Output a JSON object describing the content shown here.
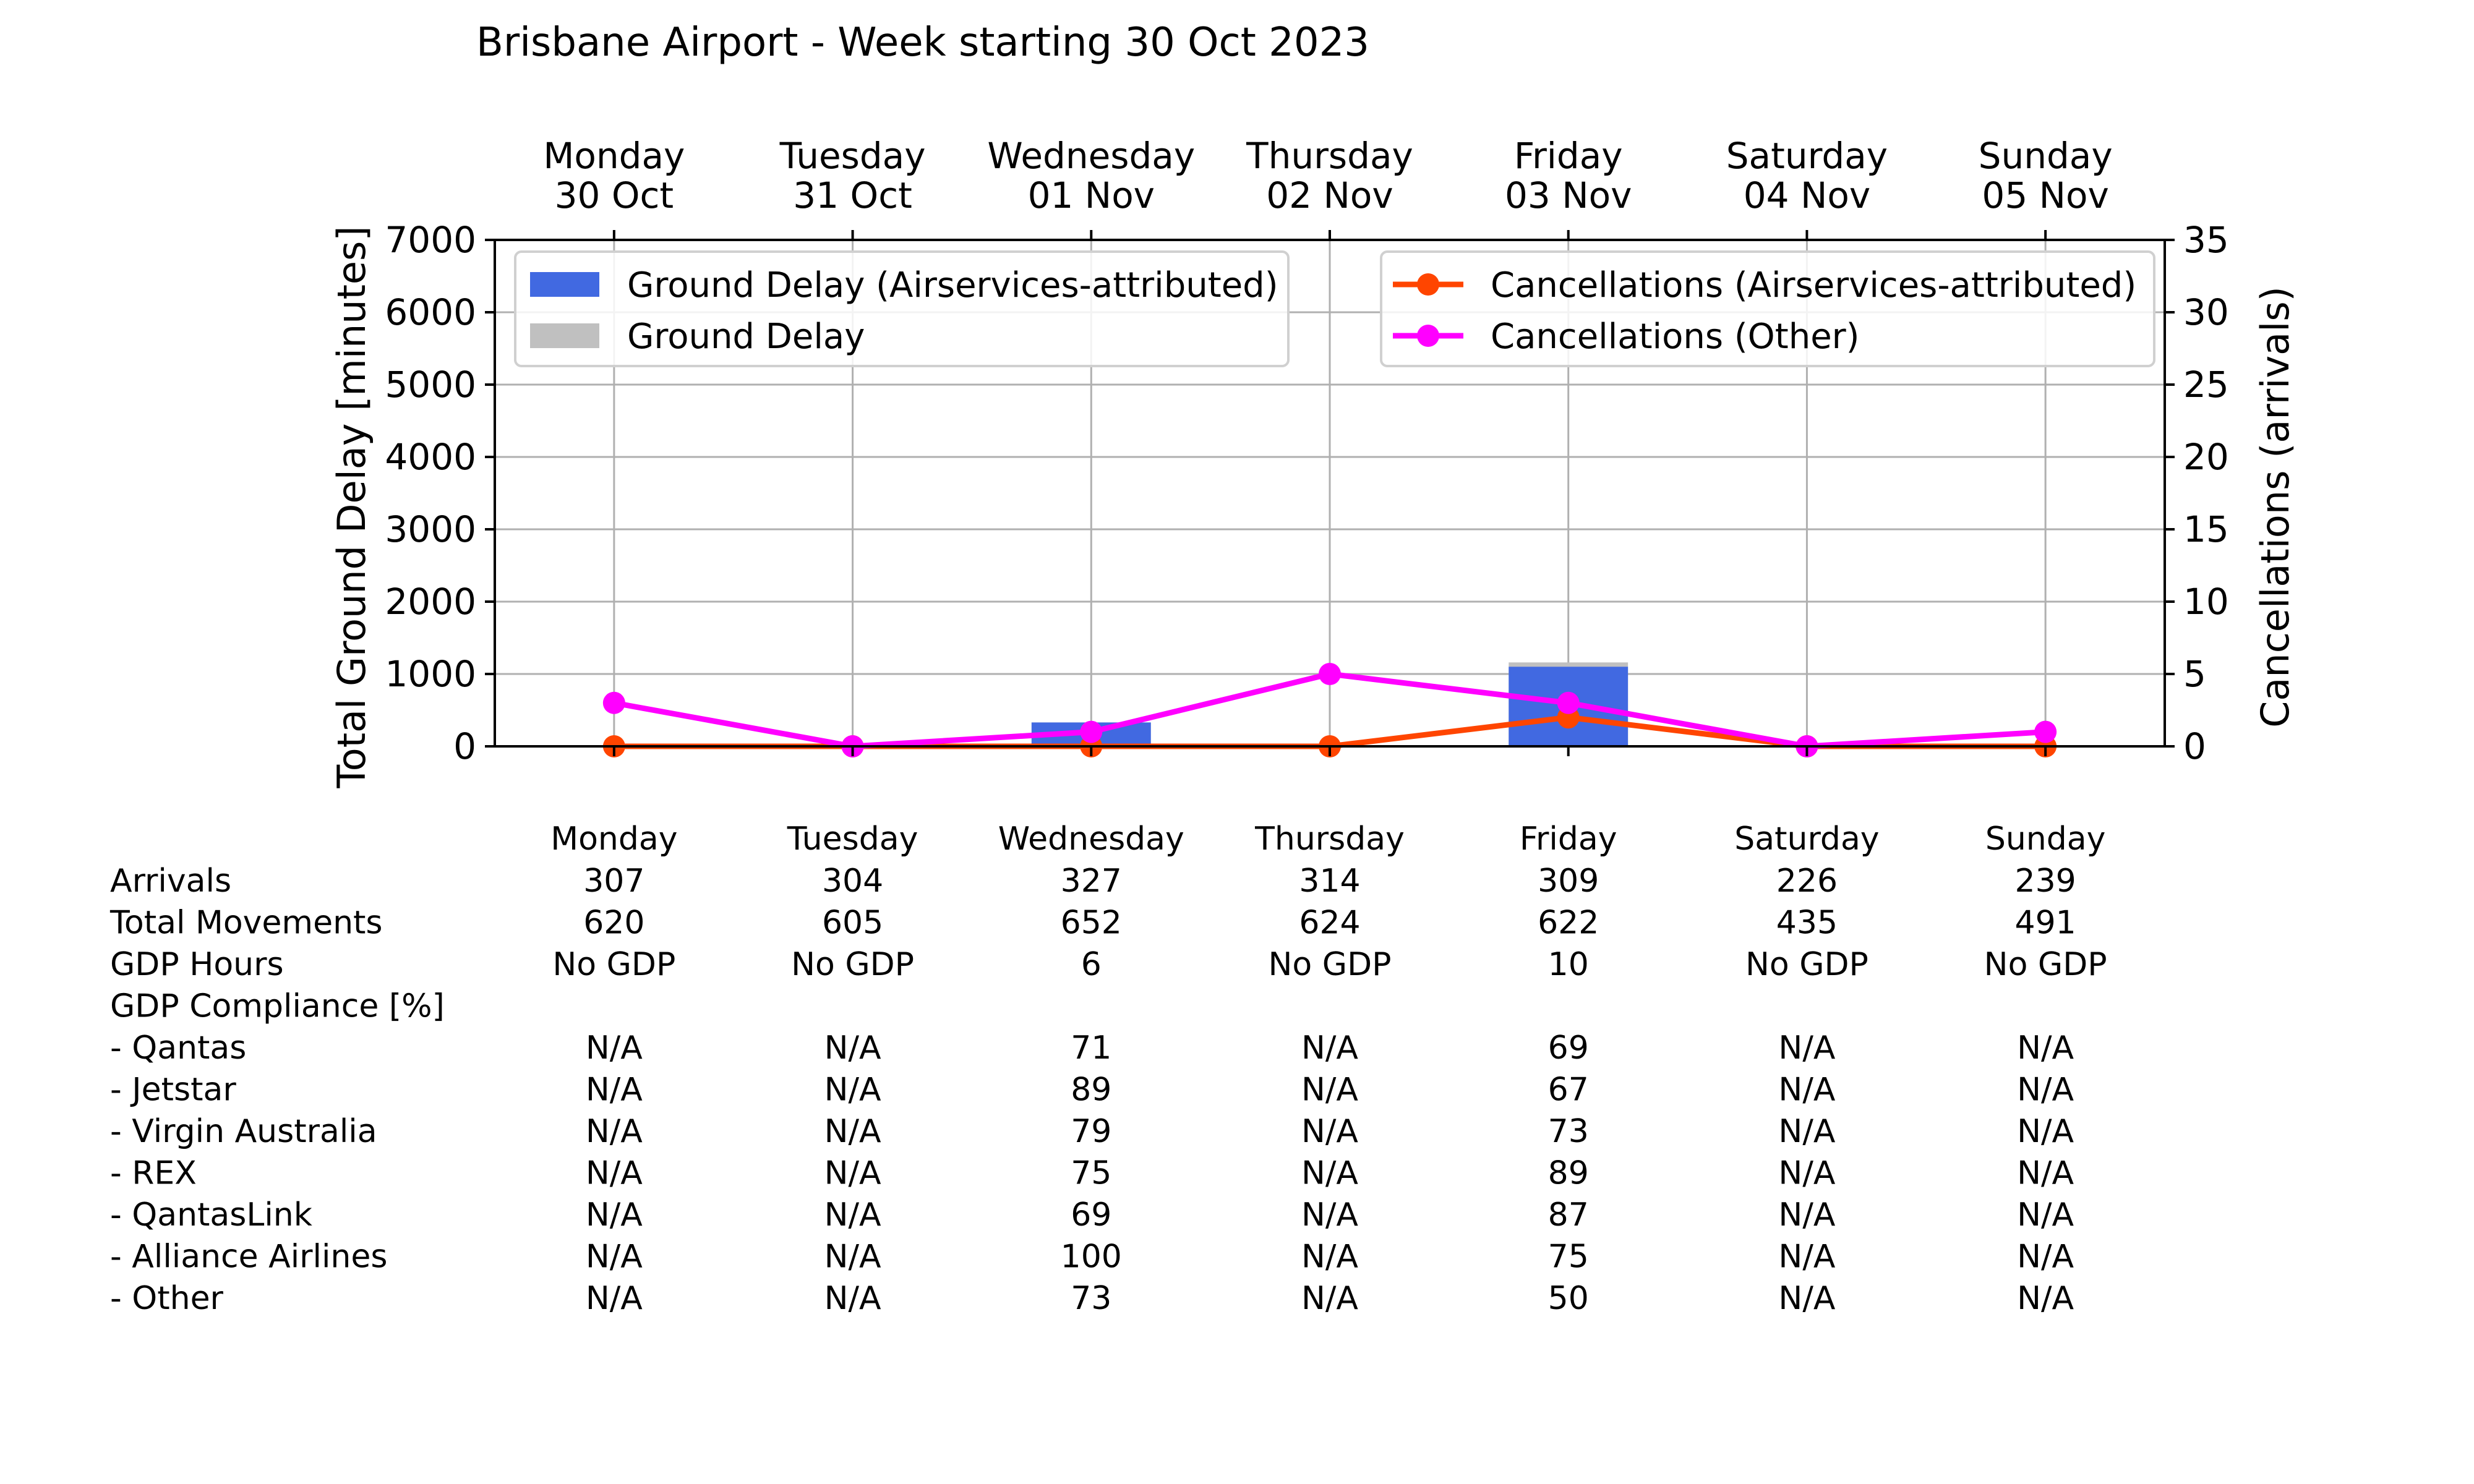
{
  "chart_data": {
    "type": "bar",
    "title": "Brisbane Airport - Week starting 30 Oct 2023",
    "top_labels": [
      [
        "Monday",
        "30 Oct"
      ],
      [
        "Tuesday",
        "31 Oct"
      ],
      [
        "Wednesday",
        "01 Nov"
      ],
      [
        "Thursday",
        "02 Nov"
      ],
      [
        "Friday",
        "03 Nov"
      ],
      [
        "Saturday",
        "04 Nov"
      ],
      [
        "Sunday",
        "05 Nov"
      ]
    ],
    "ylabel": "Total Ground Delay [minutes]",
    "ylabel_right": "Cancellations (arrivals)",
    "ylim": [
      0,
      7000
    ],
    "ylim_right": [
      0,
      35
    ],
    "yticks": [
      0,
      1000,
      2000,
      3000,
      4000,
      5000,
      6000,
      7000
    ],
    "yticks_right": [
      0,
      5,
      10,
      15,
      20,
      25,
      30,
      35
    ],
    "grid": true,
    "bar_series": [
      {
        "name": "Ground Delay (Airservices-attributed)",
        "color": "#4169e1",
        "values": [
          0,
          0,
          330,
          0,
          1100,
          0,
          0
        ]
      },
      {
        "name": "Ground Delay",
        "color": "#c0c0c0",
        "values": [
          0,
          0,
          330,
          0,
          1160,
          0,
          0
        ]
      }
    ],
    "line_series": [
      {
        "name": "Cancellations (Airservices-attributed)",
        "color": "#ff4500",
        "values": [
          0,
          0,
          0,
          0,
          2,
          0,
          0
        ]
      },
      {
        "name": "Cancellations (Other)",
        "color": "#ff00ff",
        "values": [
          3,
          0,
          1,
          5,
          3,
          0,
          1
        ]
      }
    ],
    "legend_left_placement": "upper-left",
    "legend_right_placement": "upper-right"
  },
  "table": {
    "columns": [
      "Monday",
      "Tuesday",
      "Wednesday",
      "Thursday",
      "Friday",
      "Saturday",
      "Sunday"
    ],
    "rows": [
      {
        "label": "Arrivals",
        "values": [
          "307",
          "304",
          "327",
          "314",
          "309",
          "226",
          "239"
        ]
      },
      {
        "label": "Total Movements",
        "values": [
          "620",
          "605",
          "652",
          "624",
          "622",
          "435",
          "491"
        ]
      },
      {
        "label": "GDP Hours",
        "values": [
          "No GDP",
          "No GDP",
          "6",
          "No GDP",
          "10",
          "No GDP",
          "No GDP"
        ]
      },
      {
        "label": "GDP Compliance [%]",
        "values": [
          "",
          "",
          "",
          "",
          "",
          "",
          ""
        ]
      },
      {
        "label": "  - Qantas",
        "values": [
          "N/A",
          "N/A",
          "71",
          "N/A",
          "69",
          "N/A",
          "N/A"
        ]
      },
      {
        "label": "  - Jetstar",
        "values": [
          "N/A",
          "N/A",
          "89",
          "N/A",
          "67",
          "N/A",
          "N/A"
        ]
      },
      {
        "label": "  - Virgin Australia",
        "values": [
          "N/A",
          "N/A",
          "79",
          "N/A",
          "73",
          "N/A",
          "N/A"
        ]
      },
      {
        "label": "  - REX",
        "values": [
          "N/A",
          "N/A",
          "75",
          "N/A",
          "89",
          "N/A",
          "N/A"
        ]
      },
      {
        "label": "  - QantasLink",
        "values": [
          "N/A",
          "N/A",
          "69",
          "N/A",
          "87",
          "N/A",
          "N/A"
        ]
      },
      {
        "label": "  - Alliance Airlines",
        "values": [
          "N/A",
          "N/A",
          "100",
          "N/A",
          "75",
          "N/A",
          "N/A"
        ]
      },
      {
        "label": "  - Other",
        "values": [
          "N/A",
          "N/A",
          "73",
          "N/A",
          "50",
          "N/A",
          "N/A"
        ]
      }
    ]
  }
}
